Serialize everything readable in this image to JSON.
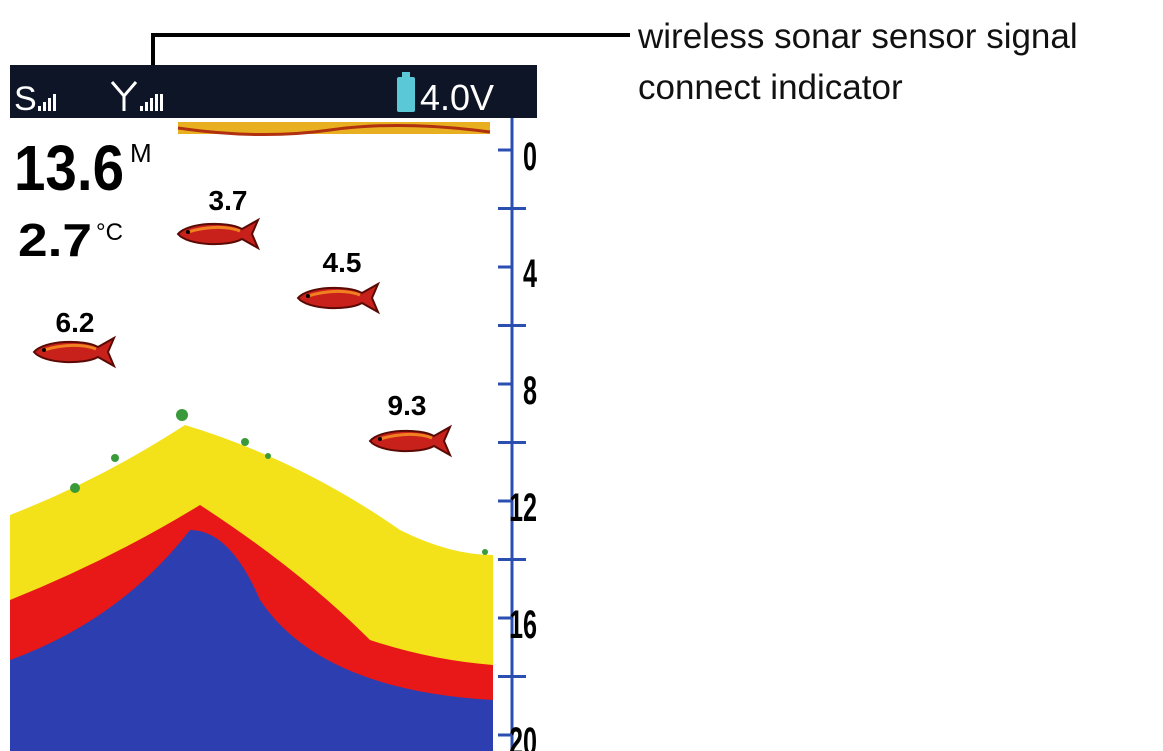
{
  "status_bar": {
    "sonar_label": "S",
    "battery": "4.0V"
  },
  "readout": {
    "depth": "13.6",
    "depth_unit": "M",
    "temperature": "2.7",
    "temperature_unit": "°C"
  },
  "fish": [
    {
      "label": "3.7"
    },
    {
      "label": "4.5"
    },
    {
      "label": "6.2"
    },
    {
      "label": "9.3"
    }
  ],
  "depth_scale": {
    "ticks": [
      0,
      4,
      8,
      12,
      16,
      20
    ]
  },
  "annotation": {
    "lines": [
      "wireless sonar sensor signal",
      "connect indicator"
    ]
  }
}
